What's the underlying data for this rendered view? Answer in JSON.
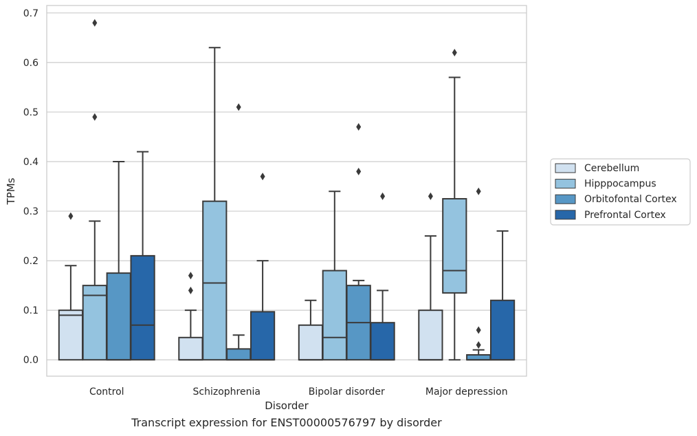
{
  "chart_data": {
    "type": "box",
    "caption": "Transcript expression for ENST00000576797 by disorder",
    "xlabel": "Disorder",
    "ylabel": "TPMs",
    "ylim": [
      -0.033,
      0.715
    ],
    "yticks": [
      0.0,
      0.1,
      0.2,
      0.3,
      0.4,
      0.5,
      0.6,
      0.7
    ],
    "ytick_labels": [
      "0.0",
      "0.1",
      "0.2",
      "0.3",
      "0.4",
      "0.5",
      "0.6",
      "0.7"
    ],
    "grid": "horizontal",
    "legend_position": "right",
    "categories": [
      "Control",
      "Schizophrenia",
      "Bipolar disorder",
      "Major depression"
    ],
    "series": [
      {
        "name": "Cerebellum",
        "color": "#d1e1f0",
        "boxes": [
          {
            "q1": 0.0,
            "median": 0.09,
            "q3": 0.1,
            "whisker_low": 0.0,
            "whisker_high": 0.19,
            "outliers": [
              0.29
            ]
          },
          {
            "q1": 0.0,
            "median": 0.0,
            "q3": 0.045,
            "whisker_low": 0.0,
            "whisker_high": 0.1,
            "outliers": [
              0.14,
              0.17
            ]
          },
          {
            "q1": 0.0,
            "median": 0.0,
            "q3": 0.07,
            "whisker_low": 0.0,
            "whisker_high": 0.12,
            "outliers": []
          },
          {
            "q1": 0.0,
            "median": 0.0,
            "q3": 0.1,
            "whisker_low": 0.0,
            "whisker_high": 0.25,
            "outliers": [
              0.33
            ]
          }
        ]
      },
      {
        "name": "Hipppocampus",
        "color": "#94c3df",
        "boxes": [
          {
            "q1": 0.0,
            "median": 0.13,
            "q3": 0.15,
            "whisker_low": 0.0,
            "whisker_high": 0.28,
            "outliers": [
              0.49,
              0.68
            ]
          },
          {
            "q1": 0.0,
            "median": 0.155,
            "q3": 0.32,
            "whisker_low": 0.0,
            "whisker_high": 0.63,
            "outliers": []
          },
          {
            "q1": 0.0,
            "median": 0.045,
            "q3": 0.18,
            "whisker_low": 0.0,
            "whisker_high": 0.34,
            "outliers": []
          },
          {
            "q1": 0.135,
            "median": 0.18,
            "q3": 0.325,
            "whisker_low": 0.0,
            "whisker_high": 0.57,
            "outliers": [
              0.62
            ]
          }
        ]
      },
      {
        "name": "Orbitofontal Cortex",
        "color": "#5797c5",
        "boxes": [
          {
            "q1": 0.0,
            "median": 0.0,
            "q3": 0.175,
            "whisker_low": 0.0,
            "whisker_high": 0.4,
            "outliers": []
          },
          {
            "q1": 0.0,
            "median": 0.0,
            "q3": 0.022,
            "whisker_low": 0.0,
            "whisker_high": 0.05,
            "outliers": [
              0.51
            ]
          },
          {
            "q1": 0.0,
            "median": 0.075,
            "q3": 0.15,
            "whisker_low": 0.0,
            "whisker_high": 0.16,
            "outliers": [
              0.38,
              0.47
            ]
          },
          {
            "q1": 0.0,
            "median": 0.0,
            "q3": 0.01,
            "whisker_low": 0.0,
            "whisker_high": 0.02,
            "outliers": [
              0.03,
              0.06,
              0.34
            ]
          }
        ]
      },
      {
        "name": "Prefrontal Cortex",
        "color": "#2767a9",
        "boxes": [
          {
            "q1": 0.0,
            "median": 0.07,
            "q3": 0.21,
            "whisker_low": 0.0,
            "whisker_high": 0.42,
            "outliers": []
          },
          {
            "q1": 0.0,
            "median": 0.0,
            "q3": 0.097,
            "whisker_low": 0.0,
            "whisker_high": 0.2,
            "outliers": [
              0.37
            ]
          },
          {
            "q1": 0.0,
            "median": 0.0,
            "q3": 0.075,
            "whisker_low": 0.0,
            "whisker_high": 0.14,
            "outliers": [
              0.33
            ]
          },
          {
            "q1": 0.0,
            "median": 0.0,
            "q3": 0.12,
            "whisker_low": 0.0,
            "whisker_high": 0.26,
            "outliers": []
          }
        ]
      }
    ]
  }
}
